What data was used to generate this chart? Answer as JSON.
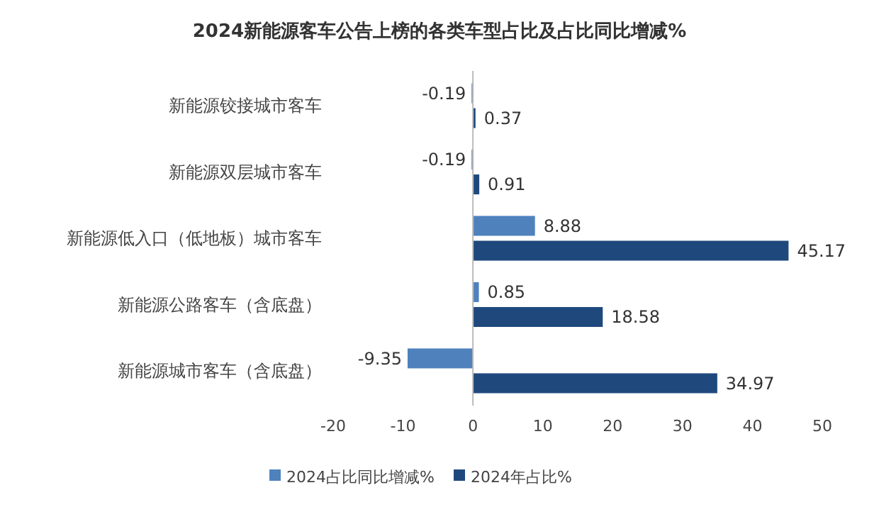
{
  "chart_data": {
    "type": "bar",
    "orientation": "horizontal",
    "title": "2024新能源客车公告上榜的各类车型占比及占比同比增减%",
    "categories": [
      "新能源铰接城市客车",
      "新能源双层城市客车",
      "新能源低入口（低地板）城市客车",
      "新能源公路客车（含底盘）",
      "新能源城市客车（含底盘）"
    ],
    "series": [
      {
        "name": "2024占比同比增减%",
        "color": "#4f81bd",
        "values": [
          -0.19,
          -0.19,
          8.88,
          0.85,
          -9.35
        ]
      },
      {
        "name": "2024年占比%",
        "color": "#1f497d",
        "values": [
          0.37,
          0.91,
          45.17,
          18.58,
          34.97
        ]
      }
    ],
    "xlim": [
      -20,
      50
    ],
    "xticks": [
      -20,
      -10,
      0,
      10,
      20,
      30,
      40,
      50
    ],
    "data_labels": true,
    "legend": "bottom"
  }
}
